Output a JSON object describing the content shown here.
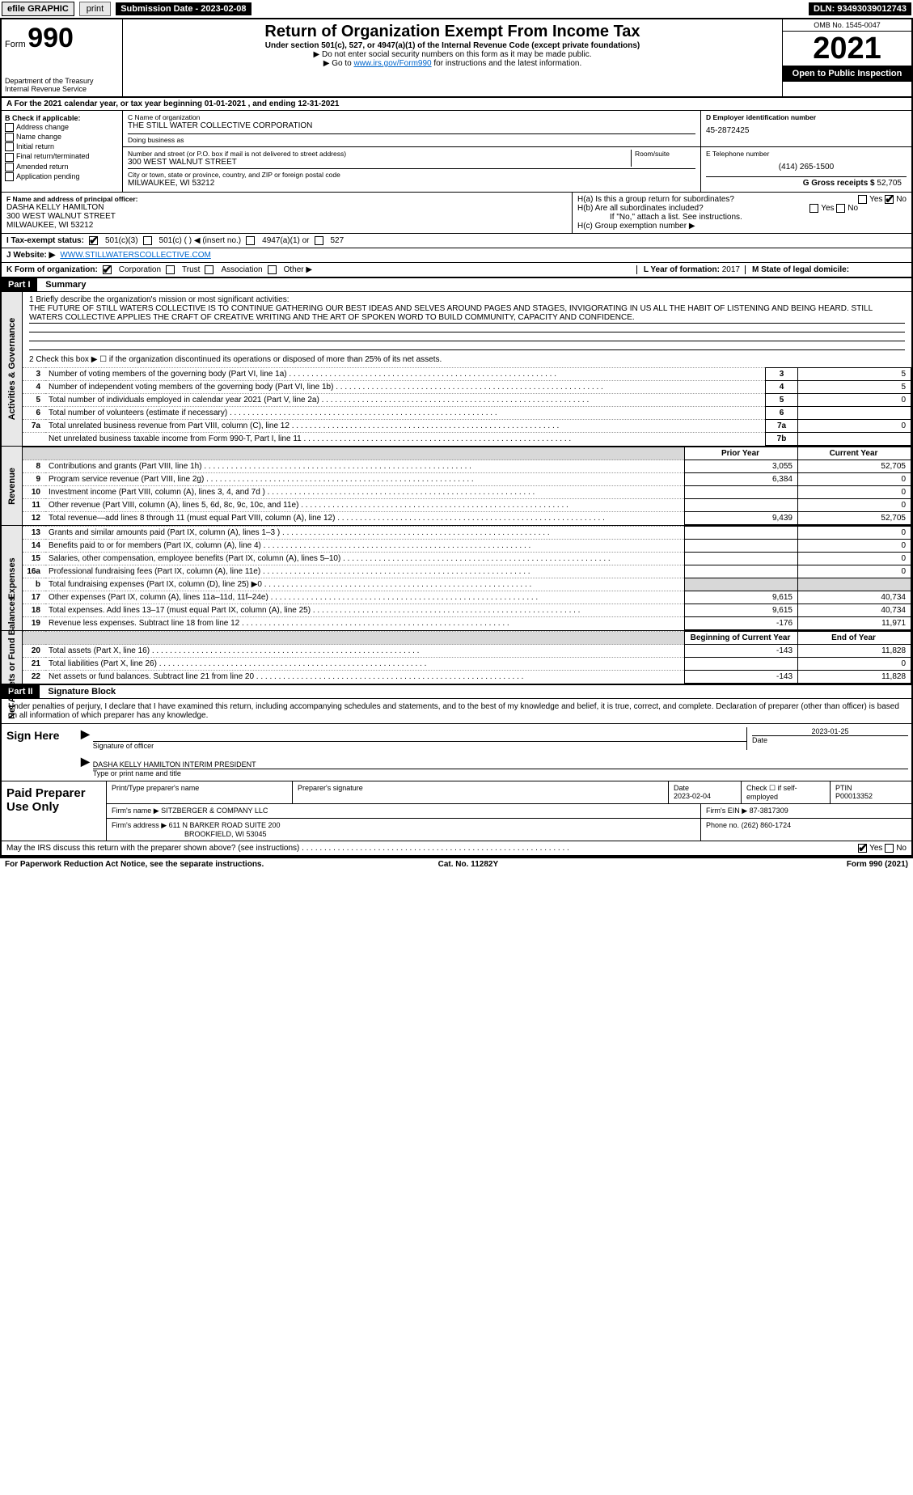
{
  "topbar": {
    "efile": "efile GRAPHIC",
    "print": "print",
    "submission": "Submission Date - 2023-02-08",
    "dln": "DLN: 93493039012743"
  },
  "header": {
    "form_prefix": "Form",
    "form_no": "990",
    "dept": "Department of the Treasury",
    "irs": "Internal Revenue Service",
    "title": "Return of Organization Exempt From Income Tax",
    "sub": "Under section 501(c), 527, or 4947(a)(1) of the Internal Revenue Code (except private foundations)",
    "note1": "▶ Do not enter social security numbers on this form as it may be made public.",
    "note2_pre": "▶ Go to ",
    "note2_link": "www.irs.gov/Form990",
    "note2_post": " for instructions and the latest information.",
    "omb": "OMB No. 1545-0047",
    "year": "2021",
    "open": "Open to Public Inspection"
  },
  "line_a": "A For the 2021 calendar year, or tax year beginning 01-01-2021     , and ending 12-31-2021",
  "box_b": {
    "title": "B Check if applicable:",
    "opts": [
      "Address change",
      "Name change",
      "Initial return",
      "Final return/terminated",
      "Amended return",
      "Application pending"
    ]
  },
  "box_c": {
    "label": "C Name of organization",
    "name": "THE STILL WATER COLLECTIVE CORPORATION",
    "dba_label": "Doing business as",
    "addr_label": "Number and street (or P.O. box if mail is not delivered to street address)",
    "room_label": "Room/suite",
    "addr": "300 WEST WALNUT STREET",
    "city_label": "City or town, state or province, country, and ZIP or foreign postal code",
    "city": "MILWAUKEE, WI  53212"
  },
  "box_d": {
    "label": "D Employer identification number",
    "val": "45-2872425"
  },
  "box_e": {
    "label": "E Telephone number",
    "val": "(414) 265-1500"
  },
  "box_g": {
    "label": "G Gross receipts $",
    "val": "52,705"
  },
  "box_f": {
    "label": "F Name and address of principal officer:",
    "name": "DASHA KELLY HAMILTON",
    "addr": "300 WEST WALNUT STREET",
    "city": "MILWAUKEE, WI  53212"
  },
  "box_h": {
    "a": "H(a)  Is this a group return for subordinates?",
    "b": "H(b)  Are all subordinates included?",
    "b_note": "If \"No,\" attach a list. See instructions.",
    "c": "H(c)  Group exemption number ▶"
  },
  "line_i": {
    "label": "I   Tax-exempt status:",
    "c3": "501(c)(3)",
    "c": "501(c) (   ) ◀ (insert no.)",
    "a1": "4947(a)(1) or",
    "s527": "527"
  },
  "line_j": {
    "label": "J   Website: ▶",
    "val": "WWW.STILLWATERSCOLLECTIVE.COM"
  },
  "line_k": {
    "label": "K Form of organization:",
    "corp": "Corporation",
    "trust": "Trust",
    "assoc": "Association",
    "other": "Other ▶"
  },
  "line_l": {
    "label": "L Year of formation:",
    "val": "2017"
  },
  "line_m": {
    "label": "M State of legal domicile:",
    "val": ""
  },
  "part1": {
    "hdr": "Part I",
    "title": "Summary"
  },
  "summary": {
    "q1": "1  Briefly describe the organization's mission or most significant activities:",
    "mission": "THE FUTURE OF STILL WATERS COLLECTIVE IS TO CONTINUE GATHERING OUR BEST IDEAS AND SELVES AROUND PAGES AND STAGES, INVIGORATING IN US ALL THE HABIT OF LISTENING AND BEING HEARD. STILL WATERS COLLECTIVE APPLIES THE CRAFT OF CREATIVE WRITING AND THE ART OF SPOKEN WORD TO BUILD COMMUNITY, CAPACITY AND CONFIDENCE.",
    "q2": "2  Check this box ▶ ☐  if the organization discontinued its operations or disposed of more than 25% of its net assets.",
    "rows_gov": [
      {
        "n": "3",
        "t": "Number of voting members of the governing body (Part VI, line 1a)",
        "b": "3",
        "v": "5"
      },
      {
        "n": "4",
        "t": "Number of independent voting members of the governing body (Part VI, line 1b)",
        "b": "4",
        "v": "5"
      },
      {
        "n": "5",
        "t": "Total number of individuals employed in calendar year 2021 (Part V, line 2a)",
        "b": "5",
        "v": "0"
      },
      {
        "n": "6",
        "t": "Total number of volunteers (estimate if necessary)",
        "b": "6",
        "v": ""
      },
      {
        "n": "7a",
        "t": "Total unrelated business revenue from Part VIII, column (C), line 12",
        "b": "7a",
        "v": "0"
      },
      {
        "n": "",
        "t": "Net unrelated business taxable income from Form 990-T, Part I, line 11",
        "b": "7b",
        "v": ""
      }
    ],
    "col_prior": "Prior Year",
    "col_curr": "Current Year",
    "rows_rev": [
      {
        "n": "8",
        "t": "Contributions and grants (Part VIII, line 1h)",
        "p": "3,055",
        "c": "52,705"
      },
      {
        "n": "9",
        "t": "Program service revenue (Part VIII, line 2g)",
        "p": "6,384",
        "c": "0"
      },
      {
        "n": "10",
        "t": "Investment income (Part VIII, column (A), lines 3, 4, and 7d )",
        "p": "",
        "c": "0"
      },
      {
        "n": "11",
        "t": "Other revenue (Part VIII, column (A), lines 5, 6d, 8c, 9c, 10c, and 11e)",
        "p": "",
        "c": "0"
      },
      {
        "n": "12",
        "t": "Total revenue—add lines 8 through 11 (must equal Part VIII, column (A), line 12)",
        "p": "9,439",
        "c": "52,705"
      }
    ],
    "rows_exp": [
      {
        "n": "13",
        "t": "Grants and similar amounts paid (Part IX, column (A), lines 1–3 )",
        "p": "",
        "c": "0"
      },
      {
        "n": "14",
        "t": "Benefits paid to or for members (Part IX, column (A), line 4)",
        "p": "",
        "c": "0"
      },
      {
        "n": "15",
        "t": "Salaries, other compensation, employee benefits (Part IX, column (A), lines 5–10)",
        "p": "",
        "c": "0"
      },
      {
        "n": "16a",
        "t": "Professional fundraising fees (Part IX, column (A), line 11e)",
        "p": "",
        "c": "0"
      },
      {
        "n": "b",
        "t": "Total fundraising expenses (Part IX, column (D), line 25) ▶0",
        "p": "—shade—",
        "c": "—shade—"
      },
      {
        "n": "17",
        "t": "Other expenses (Part IX, column (A), lines 11a–11d, 11f–24e)",
        "p": "9,615",
        "c": "40,734"
      },
      {
        "n": "18",
        "t": "Total expenses. Add lines 13–17 (must equal Part IX, column (A), line 25)",
        "p": "9,615",
        "c": "40,734"
      },
      {
        "n": "19",
        "t": "Revenue less expenses. Subtract line 18 from line 12",
        "p": "-176",
        "c": "11,971"
      }
    ],
    "col_beg": "Beginning of Current Year",
    "col_end": "End of Year",
    "rows_net": [
      {
        "n": "20",
        "t": "Total assets (Part X, line 16)",
        "p": "-143",
        "c": "11,828"
      },
      {
        "n": "21",
        "t": "Total liabilities (Part X, line 26)",
        "p": "",
        "c": "0"
      },
      {
        "n": "22",
        "t": "Net assets or fund balances. Subtract line 21 from line 20",
        "p": "-143",
        "c": "11,828"
      }
    ],
    "tab_gov": "Activities & Governance",
    "tab_rev": "Revenue",
    "tab_exp": "Expenses",
    "tab_net": "Net Assets or Fund Balances"
  },
  "part2": {
    "hdr": "Part II",
    "title": "Signature Block"
  },
  "sig": {
    "pen": "Under penalties of perjury, I declare that I have examined this return, including accompanying schedules and statements, and to the best of my knowledge and belief, it is true, correct, and complete. Declaration of preparer (other than officer) is based on all information of which preparer has any knowledge.",
    "sign_here": "Sign Here",
    "sig_officer": "Signature of officer",
    "date": "Date",
    "date_val": "2023-01-25",
    "name_title": "DASHA KELLY HAMILTON  INTERIM PRESIDENT",
    "type_name": "Type or print name and title"
  },
  "paid": {
    "label": "Paid Preparer Use Only",
    "c_print": "Print/Type preparer's name",
    "c_sig": "Preparer's signature",
    "c_date": "Date",
    "date_val": "2023-02-04",
    "c_self": "Check ☐ if self-employed",
    "c_ptin": "PTIN",
    "ptin": "P00013352",
    "firm_name_l": "Firm's name    ▶",
    "firm_name": "SITZBERGER & COMPANY LLC",
    "firm_ein_l": "Firm's EIN ▶",
    "firm_ein": "87-3817309",
    "firm_addr_l": "Firm's address ▶",
    "firm_addr": "611 N BARKER ROAD SUITE 200",
    "firm_city": "BROOKFIELD, WI  53045",
    "phone_l": "Phone no.",
    "phone": "(262) 860-1724"
  },
  "may_discuss": "May the IRS discuss this return with the preparer shown above? (see instructions)",
  "footer": {
    "pra": "For Paperwork Reduction Act Notice, see the separate instructions.",
    "cat": "Cat. No. 11282Y",
    "form": "Form 990 (2021)"
  },
  "yesno": {
    "yes": "Yes",
    "no": "No"
  }
}
